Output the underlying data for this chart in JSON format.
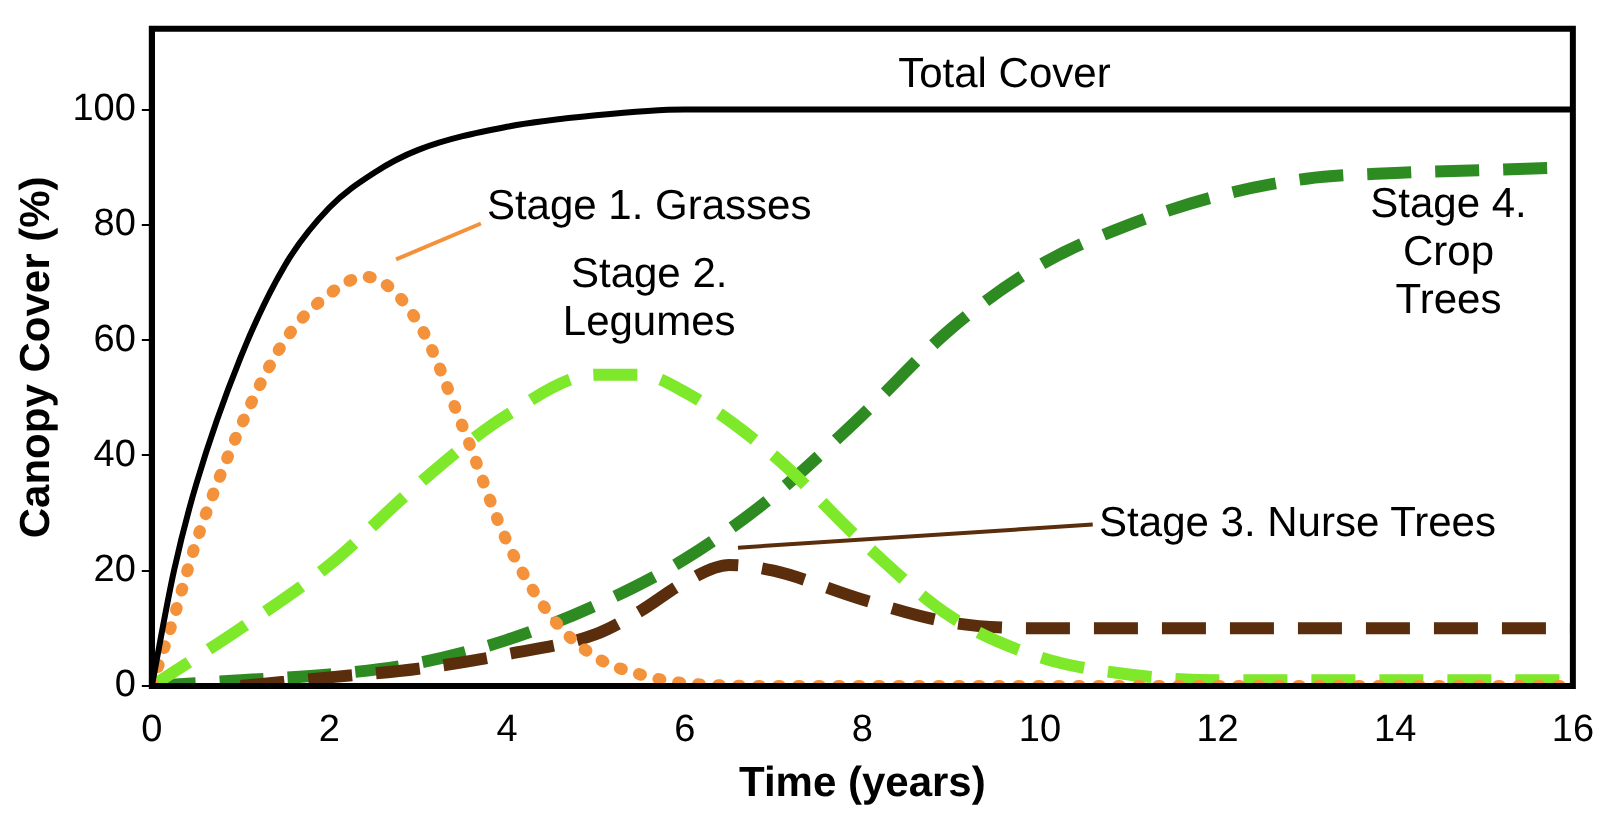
{
  "chart_data": {
    "type": "line",
    "xlabel": "Time (years)",
    "ylabel": "Canopy Cover (%)",
    "xlim": [
      0,
      16
    ],
    "xticks": [
      0,
      2,
      4,
      6,
      8,
      10,
      12,
      14,
      16
    ],
    "ylim": [
      0,
      114
    ],
    "yticks": [
      0,
      20,
      40,
      60,
      80,
      100
    ],
    "grid": false,
    "legend": false,
    "marker": "none",
    "series": [
      {
        "name": "Total Cover",
        "color": "#000000",
        "line_style": "solid",
        "x": [
          0,
          0.25,
          0.5,
          1,
          1.5,
          2,
          2.5,
          3,
          4,
          5,
          6,
          8,
          10,
          12,
          14,
          16
        ],
        "values": [
          0,
          20,
          35,
          57,
          73,
          83,
          89,
          93,
          97,
          99,
          100,
          100,
          100,
          100,
          100,
          100
        ]
      },
      {
        "name": "Stage 1. Grasses",
        "color": "#f4923c",
        "line_style": "dotted",
        "x": [
          0,
          0.25,
          0.5,
          1,
          1.5,
          2,
          2.4,
          3,
          3.5,
          4,
          4.5,
          5,
          5.5,
          6,
          7,
          16
        ],
        "values": [
          0,
          12,
          25,
          45,
          60,
          68,
          71,
          63,
          45,
          25,
          12,
          5,
          2,
          0.5,
          0,
          0
        ]
      },
      {
        "name": "Stage 2. Legumes",
        "color": "#7ee82a",
        "line_style": "dashed",
        "x": [
          0,
          1,
          2,
          3,
          4,
          5,
          5.5,
          6,
          7,
          8,
          9,
          10,
          11,
          12,
          16
        ],
        "values": [
          0,
          10,
          21,
          35,
          47,
          54,
          54,
          51,
          40,
          25,
          12,
          5,
          2,
          1,
          1
        ]
      },
      {
        "name": "Stage 3. Nurse Trees",
        "color": "#5a2d0c",
        "line_style": "dashed",
        "x": [
          1,
          2,
          3,
          4,
          5,
          5.5,
          6,
          6.5,
          7,
          8,
          9,
          10,
          16
        ],
        "values": [
          0,
          1.5,
          3,
          5.5,
          9,
          13,
          18,
          21,
          20,
          15,
          11,
          10,
          10
        ]
      },
      {
        "name": "Stage 4. Crop Trees",
        "color": "#2e8b22",
        "line_style": "dashed",
        "x": [
          0,
          1,
          2,
          3,
          4,
          5,
          6,
          7,
          8,
          9,
          10,
          11,
          12,
          13,
          14,
          15,
          16
        ],
        "values": [
          0,
          1,
          2,
          4,
          8,
          14,
          22,
          33,
          47,
          62,
          73,
          80,
          85,
          88,
          89,
          89.5,
          90
        ]
      }
    ]
  }
}
